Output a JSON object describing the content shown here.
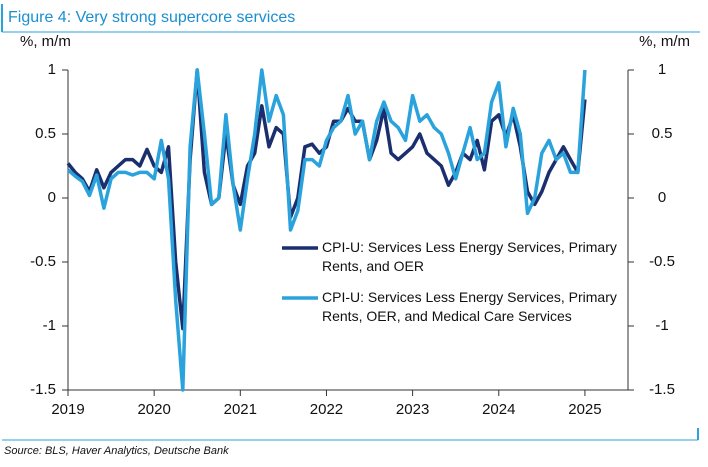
{
  "chart_data": {
    "type": "line",
    "title": "Figure 4: Very strong supercore services",
    "ylabel": "%, m/m",
    "y2label": "%, m/m",
    "source": "Source: BLS, Haver Analytics, Deutsche Bank",
    "x": [
      2019,
      2019.083,
      2019.167,
      2019.25,
      2019.333,
      2019.417,
      2019.5,
      2019.583,
      2019.667,
      2019.75,
      2019.833,
      2019.917,
      2020,
      2020.083,
      2020.167,
      2020.25,
      2020.333,
      2020.417,
      2020.5,
      2020.583,
      2020.667,
      2020.75,
      2020.833,
      2020.917,
      2021,
      2021.083,
      2021.167,
      2021.25,
      2021.333,
      2021.417,
      2021.5,
      2021.583,
      2021.667,
      2021.75,
      2021.833,
      2021.917,
      2022,
      2022.083,
      2022.167,
      2022.25,
      2022.333,
      2022.417,
      2022.5,
      2022.583,
      2022.667,
      2022.75,
      2022.833,
      2022.917,
      2023,
      2023.083,
      2023.167,
      2023.25,
      2023.333,
      2023.417,
      2023.5,
      2023.583,
      2023.667,
      2023.75,
      2023.833,
      2023.917,
      2024,
      2024.083,
      2024.167,
      2024.25,
      2024.333,
      2024.417,
      2024.5,
      2024.583,
      2024.667,
      2024.75,
      2024.833,
      2024.917,
      2025
    ],
    "series": [
      {
        "name": "CPI-U: Services Less Energy Services, Primary Rents, and OER",
        "color": "#1b2f6e",
        "values": [
          0.27,
          0.2,
          0.15,
          0.05,
          0.22,
          0.08,
          0.2,
          0.25,
          0.3,
          0.3,
          0.25,
          0.38,
          0.25,
          0.2,
          0.4,
          -0.5,
          -1.02,
          0.3,
          1.0,
          0.2,
          -0.05,
          0.0,
          0.5,
          0.1,
          -0.05,
          0.25,
          0.35,
          0.72,
          0.4,
          0.55,
          0.5,
          -0.15,
          0.0,
          0.4,
          0.42,
          0.35,
          0.4,
          0.6,
          0.6,
          0.7,
          0.6,
          0.6,
          0.3,
          0.45,
          0.7,
          0.35,
          0.3,
          0.35,
          0.4,
          0.5,
          0.35,
          0.3,
          0.25,
          0.1,
          0.2,
          0.35,
          0.3,
          0.45,
          0.22,
          0.6,
          0.65,
          0.48,
          0.65,
          0.4,
          0.05,
          -0.05,
          0.05,
          0.2,
          0.3,
          0.4,
          0.3,
          0.2,
          0.77
        ]
      },
      {
        "name": "CPI-U: Services Less Energy Services, Primary Rents, OER, and Medical Care Services",
        "color": "#2aa3dc",
        "values": [
          0.22,
          0.17,
          0.13,
          0.02,
          0.18,
          -0.08,
          0.15,
          0.2,
          0.2,
          0.18,
          0.2,
          0.2,
          0.15,
          0.45,
          0.15,
          -0.8,
          -1.5,
          0.4,
          1.0,
          0.5,
          -0.05,
          0.0,
          0.65,
          0.1,
          -0.25,
          0.15,
          0.5,
          1.0,
          0.6,
          0.8,
          0.65,
          -0.25,
          -0.1,
          0.3,
          0.3,
          0.25,
          0.45,
          0.55,
          0.6,
          0.8,
          0.5,
          0.6,
          0.3,
          0.6,
          0.75,
          0.6,
          0.55,
          0.45,
          0.8,
          0.6,
          0.65,
          0.55,
          0.5,
          0.35,
          0.15,
          0.35,
          0.55,
          0.3,
          0.35,
          0.75,
          0.9,
          0.4,
          0.7,
          0.5,
          -0.12,
          0.0,
          0.35,
          0.45,
          0.3,
          0.35,
          0.2,
          0.2,
          1.0
        ]
      }
    ],
    "xlim": [
      2019,
      2025.5
    ],
    "xticks": [
      2019,
      2020,
      2021,
      2022,
      2023,
      2024,
      2025
    ],
    "ylim": [
      -1.5,
      1
    ],
    "yticks": [
      1,
      0.5,
      0,
      -0.5,
      -1,
      -1.5
    ],
    "y2lim": [
      -1.5,
      1
    ],
    "y2ticks": [
      1,
      0.5,
      0,
      -0.5,
      -1,
      -1.5
    ],
    "grid": false,
    "legend": "center right"
  }
}
